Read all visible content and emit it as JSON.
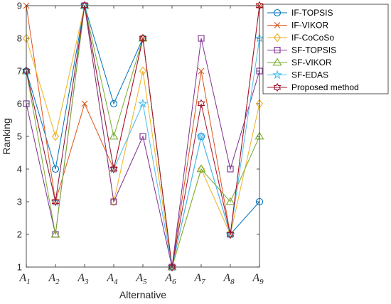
{
  "chart_data": {
    "type": "line",
    "categories": [
      {
        "base": "A",
        "sub": "1"
      },
      {
        "base": "A",
        "sub": "2"
      },
      {
        "base": "A",
        "sub": "3"
      },
      {
        "base": "A",
        "sub": "4"
      },
      {
        "base": "A",
        "sub": "5"
      },
      {
        "base": "A",
        "sub": "6"
      },
      {
        "base": "A",
        "sub": "7"
      },
      {
        "base": "A",
        "sub": "8"
      },
      {
        "base": "A",
        "sub": "9"
      }
    ],
    "xlabel": "Alternative",
    "ylabel": "Ranking",
    "ylim": [
      1,
      9
    ],
    "yticks": [
      1,
      2,
      3,
      4,
      5,
      6,
      7,
      8,
      9
    ],
    "grid": false,
    "legend_position": "top-right outside",
    "series": [
      {
        "name": "IF-TOPSIS",
        "color": "#0072BD",
        "marker": "circle",
        "values": [
          7,
          4,
          9,
          6,
          8,
          1,
          5,
          2,
          3
        ]
      },
      {
        "name": "IF-VIKOR",
        "color": "#D95319",
        "marker": "x",
        "values": [
          9,
          3,
          6,
          4,
          8,
          1,
          7,
          2,
          9
        ]
      },
      {
        "name": "IF-CoCoSo",
        "color": "#EDB120",
        "marker": "diamond",
        "values": [
          8,
          5,
          9,
          3,
          7,
          1,
          4,
          2,
          6
        ]
      },
      {
        "name": "SF-TOPSIS",
        "color": "#7E2F8E",
        "marker": "square",
        "values": [
          6,
          2,
          9,
          3,
          5,
          1,
          8,
          4,
          7
        ]
      },
      {
        "name": "SF-VIKOR",
        "color": "#77AC30",
        "marker": "triangle",
        "values": [
          7,
          2,
          9,
          5,
          8,
          1,
          4,
          3,
          5
        ]
      },
      {
        "name": "SF-EDAS",
        "color": "#4DBEEE",
        "marker": "pentagram",
        "values": [
          7,
          3,
          9,
          4,
          6,
          1,
          5,
          2,
          8
        ]
      },
      {
        "name": "Proposed method",
        "color": "#A2142F",
        "marker": "hexagram",
        "values": [
          7,
          3,
          9,
          4,
          8,
          1,
          6,
          2,
          9
        ]
      }
    ]
  }
}
